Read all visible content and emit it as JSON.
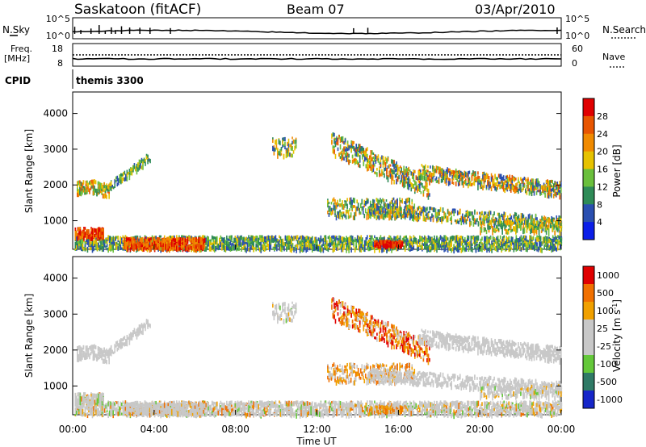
{
  "header": {
    "station": "Saskatoon (fitACF)",
    "beam": "Beam 07",
    "date": "03/Apr/2010"
  },
  "nsky": {
    "left_label": "N.Sky",
    "left_ticks": [
      "10^5",
      "10^0"
    ],
    "right_ticks": [
      "10^5",
      "10^0"
    ],
    "right_label": "N.Search"
  },
  "freq": {
    "left_label_1": "Freq.",
    "left_label_2": "[MHz]",
    "left_ticks": [
      "18",
      "8"
    ],
    "right_ticks": [
      "60",
      "0"
    ],
    "right_label": "Nave"
  },
  "cpid": {
    "label": "CPID",
    "value": "themis 3300"
  },
  "colors": {
    "power": [
      "#0b1ee8",
      "#2a4fb0",
      "#2e8b57",
      "#6abf3c",
      "#e6c200",
      "#f08a00",
      "#e85500",
      "#e00000"
    ],
    "velocity": [
      "#1626c9",
      "#2f7a66",
      "#64c83a",
      "#c8c8c8",
      "#c8c8c8",
      "#f0a000",
      "#f07000",
      "#e00000"
    ]
  },
  "chart_data": [
    {
      "type": "heatmap",
      "name_key": "power",
      "ylabel": "Slant Range [km]",
      "yticks": [
        "1000",
        "2000",
        "3000",
        "4000"
      ],
      "ylim": [
        200,
        4600
      ],
      "xlim": [
        0,
        24
      ],
      "xticks": [
        "00:00",
        "04:00",
        "08:00",
        "12:00",
        "16:00",
        "20:00",
        "00:00"
      ],
      "colorbar_label": "Power [dB]",
      "colorbar_ticks": [
        "4",
        "8",
        "12",
        "16",
        "20",
        "24",
        "28"
      ],
      "colorbar_range": [
        0,
        32
      ]
    },
    {
      "type": "heatmap",
      "name_key": "velocity",
      "ylabel": "Slant Range [km]",
      "yticks": [
        "1000",
        "2000",
        "3000",
        "4000"
      ],
      "ylim": [
        200,
        4600
      ],
      "xlim": [
        0,
        24
      ],
      "xticks": [
        "00:00",
        "04:00",
        "08:00",
        "12:00",
        "16:00",
        "20:00",
        "00:00"
      ],
      "xlabel": "Time UT",
      "colorbar_label_main": "Velocity [m s",
      "colorbar_label_sup": "-1",
      "colorbar_label_end": "]",
      "colorbar_ticks": [
        "1000",
        "500",
        "100",
        "25",
        "-25",
        "-100",
        "-500",
        "-1000"
      ]
    }
  ]
}
